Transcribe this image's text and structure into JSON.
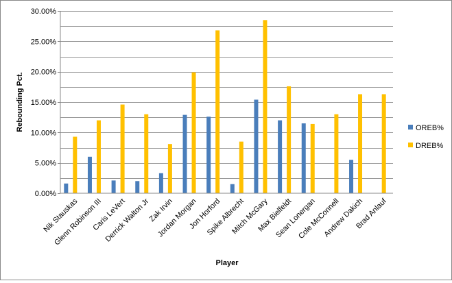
{
  "chart_data": {
    "type": "bar",
    "title": "",
    "xlabel": "Player",
    "ylabel": "Rebounding Pct.",
    "ylim": [
      0,
      30
    ],
    "ytick_step": 2.5,
    "ytick_labels": [
      "0.00%",
      "5.00%",
      "10.00%",
      "15.00%",
      "20.00%",
      "25.00%",
      "30.00%"
    ],
    "grid": true,
    "legend_position": "right",
    "categories": [
      "Nik Stauskas",
      "Glenn Robinson III",
      "Caris LeVert",
      "Derrick Walton Jr",
      "Zak Irvin",
      "Jordan Morgan",
      "Jon Horford",
      "Spike Albrecht",
      "Mitch McGary",
      "Max Bielfeldt",
      "Sean Lonergan",
      "Cole McConnell",
      "Andrew Dakich",
      "Brad Anlauf"
    ],
    "series": [
      {
        "name": "OREB%",
        "color": "#4a7ebb",
        "values": [
          1.6,
          6.0,
          2.1,
          2.0,
          3.3,
          12.9,
          12.6,
          1.5,
          15.4,
          12.0,
          11.5,
          0,
          5.5,
          0
        ]
      },
      {
        "name": "DREB%",
        "color": "#ffc000",
        "values": [
          9.3,
          12.0,
          14.6,
          13.0,
          8.1,
          19.9,
          26.8,
          8.5,
          28.5,
          17.6,
          11.4,
          13.0,
          16.3,
          16.3
        ]
      }
    ]
  }
}
